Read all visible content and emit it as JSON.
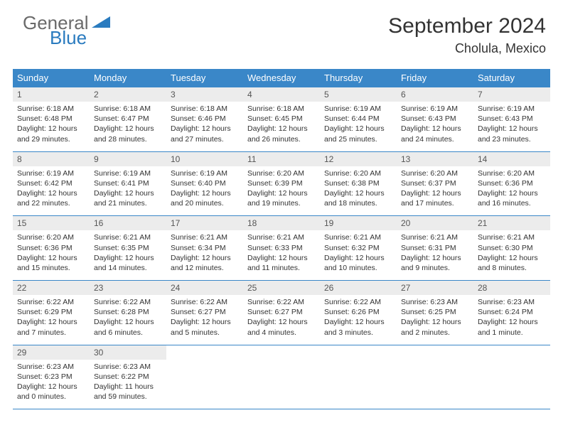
{
  "logo": {
    "word1": "General",
    "word2": "Blue"
  },
  "title": "September 2024",
  "location": "Cholula, Mexico",
  "colors": {
    "header_bg": "#3a87c8",
    "header_text": "#ffffff",
    "daynum_bg": "#ececec",
    "border": "#3a87c8",
    "body_text": "#333333",
    "logo_gray": "#6a6a6a",
    "logo_blue": "#2a7bbf"
  },
  "day_names": [
    "Sunday",
    "Monday",
    "Tuesday",
    "Wednesday",
    "Thursday",
    "Friday",
    "Saturday"
  ],
  "weeks": [
    {
      "days": [
        {
          "num": "1",
          "sunrise": "Sunrise: 6:18 AM",
          "sunset": "Sunset: 6:48 PM",
          "daylight1": "Daylight: 12 hours",
          "daylight2": "and 29 minutes."
        },
        {
          "num": "2",
          "sunrise": "Sunrise: 6:18 AM",
          "sunset": "Sunset: 6:47 PM",
          "daylight1": "Daylight: 12 hours",
          "daylight2": "and 28 minutes."
        },
        {
          "num": "3",
          "sunrise": "Sunrise: 6:18 AM",
          "sunset": "Sunset: 6:46 PM",
          "daylight1": "Daylight: 12 hours",
          "daylight2": "and 27 minutes."
        },
        {
          "num": "4",
          "sunrise": "Sunrise: 6:18 AM",
          "sunset": "Sunset: 6:45 PM",
          "daylight1": "Daylight: 12 hours",
          "daylight2": "and 26 minutes."
        },
        {
          "num": "5",
          "sunrise": "Sunrise: 6:19 AM",
          "sunset": "Sunset: 6:44 PM",
          "daylight1": "Daylight: 12 hours",
          "daylight2": "and 25 minutes."
        },
        {
          "num": "6",
          "sunrise": "Sunrise: 6:19 AM",
          "sunset": "Sunset: 6:43 PM",
          "daylight1": "Daylight: 12 hours",
          "daylight2": "and 24 minutes."
        },
        {
          "num": "7",
          "sunrise": "Sunrise: 6:19 AM",
          "sunset": "Sunset: 6:43 PM",
          "daylight1": "Daylight: 12 hours",
          "daylight2": "and 23 minutes."
        }
      ]
    },
    {
      "days": [
        {
          "num": "8",
          "sunrise": "Sunrise: 6:19 AM",
          "sunset": "Sunset: 6:42 PM",
          "daylight1": "Daylight: 12 hours",
          "daylight2": "and 22 minutes."
        },
        {
          "num": "9",
          "sunrise": "Sunrise: 6:19 AM",
          "sunset": "Sunset: 6:41 PM",
          "daylight1": "Daylight: 12 hours",
          "daylight2": "and 21 minutes."
        },
        {
          "num": "10",
          "sunrise": "Sunrise: 6:19 AM",
          "sunset": "Sunset: 6:40 PM",
          "daylight1": "Daylight: 12 hours",
          "daylight2": "and 20 minutes."
        },
        {
          "num": "11",
          "sunrise": "Sunrise: 6:20 AM",
          "sunset": "Sunset: 6:39 PM",
          "daylight1": "Daylight: 12 hours",
          "daylight2": "and 19 minutes."
        },
        {
          "num": "12",
          "sunrise": "Sunrise: 6:20 AM",
          "sunset": "Sunset: 6:38 PM",
          "daylight1": "Daylight: 12 hours",
          "daylight2": "and 18 minutes."
        },
        {
          "num": "13",
          "sunrise": "Sunrise: 6:20 AM",
          "sunset": "Sunset: 6:37 PM",
          "daylight1": "Daylight: 12 hours",
          "daylight2": "and 17 minutes."
        },
        {
          "num": "14",
          "sunrise": "Sunrise: 6:20 AM",
          "sunset": "Sunset: 6:36 PM",
          "daylight1": "Daylight: 12 hours",
          "daylight2": "and 16 minutes."
        }
      ]
    },
    {
      "days": [
        {
          "num": "15",
          "sunrise": "Sunrise: 6:20 AM",
          "sunset": "Sunset: 6:36 PM",
          "daylight1": "Daylight: 12 hours",
          "daylight2": "and 15 minutes."
        },
        {
          "num": "16",
          "sunrise": "Sunrise: 6:21 AM",
          "sunset": "Sunset: 6:35 PM",
          "daylight1": "Daylight: 12 hours",
          "daylight2": "and 14 minutes."
        },
        {
          "num": "17",
          "sunrise": "Sunrise: 6:21 AM",
          "sunset": "Sunset: 6:34 PM",
          "daylight1": "Daylight: 12 hours",
          "daylight2": "and 12 minutes."
        },
        {
          "num": "18",
          "sunrise": "Sunrise: 6:21 AM",
          "sunset": "Sunset: 6:33 PM",
          "daylight1": "Daylight: 12 hours",
          "daylight2": "and 11 minutes."
        },
        {
          "num": "19",
          "sunrise": "Sunrise: 6:21 AM",
          "sunset": "Sunset: 6:32 PM",
          "daylight1": "Daylight: 12 hours",
          "daylight2": "and 10 minutes."
        },
        {
          "num": "20",
          "sunrise": "Sunrise: 6:21 AM",
          "sunset": "Sunset: 6:31 PM",
          "daylight1": "Daylight: 12 hours",
          "daylight2": "and 9 minutes."
        },
        {
          "num": "21",
          "sunrise": "Sunrise: 6:21 AM",
          "sunset": "Sunset: 6:30 PM",
          "daylight1": "Daylight: 12 hours",
          "daylight2": "and 8 minutes."
        }
      ]
    },
    {
      "days": [
        {
          "num": "22",
          "sunrise": "Sunrise: 6:22 AM",
          "sunset": "Sunset: 6:29 PM",
          "daylight1": "Daylight: 12 hours",
          "daylight2": "and 7 minutes."
        },
        {
          "num": "23",
          "sunrise": "Sunrise: 6:22 AM",
          "sunset": "Sunset: 6:28 PM",
          "daylight1": "Daylight: 12 hours",
          "daylight2": "and 6 minutes."
        },
        {
          "num": "24",
          "sunrise": "Sunrise: 6:22 AM",
          "sunset": "Sunset: 6:27 PM",
          "daylight1": "Daylight: 12 hours",
          "daylight2": "and 5 minutes."
        },
        {
          "num": "25",
          "sunrise": "Sunrise: 6:22 AM",
          "sunset": "Sunset: 6:27 PM",
          "daylight1": "Daylight: 12 hours",
          "daylight2": "and 4 minutes."
        },
        {
          "num": "26",
          "sunrise": "Sunrise: 6:22 AM",
          "sunset": "Sunset: 6:26 PM",
          "daylight1": "Daylight: 12 hours",
          "daylight2": "and 3 minutes."
        },
        {
          "num": "27",
          "sunrise": "Sunrise: 6:23 AM",
          "sunset": "Sunset: 6:25 PM",
          "daylight1": "Daylight: 12 hours",
          "daylight2": "and 2 minutes."
        },
        {
          "num": "28",
          "sunrise": "Sunrise: 6:23 AM",
          "sunset": "Sunset: 6:24 PM",
          "daylight1": "Daylight: 12 hours",
          "daylight2": "and 1 minute."
        }
      ]
    },
    {
      "days": [
        {
          "num": "29",
          "sunrise": "Sunrise: 6:23 AM",
          "sunset": "Sunset: 6:23 PM",
          "daylight1": "Daylight: 12 hours",
          "daylight2": "and 0 minutes."
        },
        {
          "num": "30",
          "sunrise": "Sunrise: 6:23 AM",
          "sunset": "Sunset: 6:22 PM",
          "daylight1": "Daylight: 11 hours",
          "daylight2": "and 59 minutes."
        },
        {
          "empty": true
        },
        {
          "empty": true
        },
        {
          "empty": true
        },
        {
          "empty": true
        },
        {
          "empty": true
        }
      ]
    }
  ]
}
